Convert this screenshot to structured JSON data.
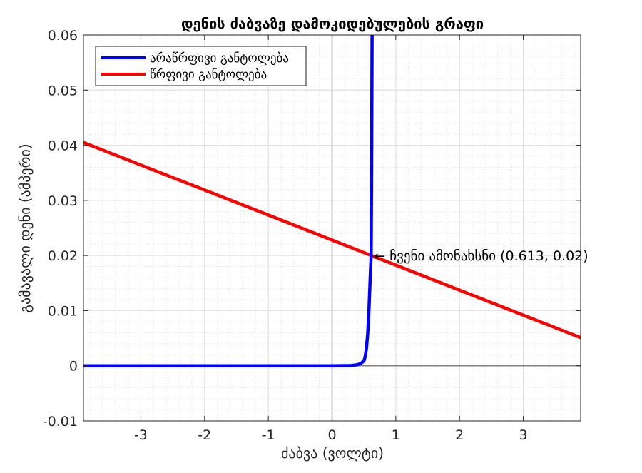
{
  "chart_data": {
    "type": "line",
    "title": "დენის ძაბვაზე დამოკიდებულების გრაფი",
    "xlabel": "ძაბვა (ვოლტი)",
    "ylabel": "გამავალი დენი (ამპერი)",
    "xlim": [
      -3.9,
      3.9
    ],
    "ylim": [
      -0.01,
      0.06
    ],
    "xticks": [
      -3,
      -2,
      -1,
      0,
      1,
      2,
      3
    ],
    "xtick_labels": [
      "-3",
      "-2",
      "-1",
      "0",
      "1",
      "2",
      "3"
    ],
    "yticks": [
      -0.01,
      0,
      0.01,
      0.02,
      0.03,
      0.04,
      0.05,
      0.06
    ],
    "ytick_labels": [
      "-0.01",
      "0",
      "0.01",
      "0.02",
      "0.03",
      "0.04",
      "0.05",
      "0.06"
    ],
    "grid": true,
    "minor_grid": true,
    "legend_position": "top-left",
    "series": [
      {
        "name": "არაწრფივი განტოლება",
        "color": "#0000ff",
        "x": [
          -3.9,
          -2,
          0,
          0.3,
          0.4,
          0.45,
          0.5,
          0.52,
          0.54,
          0.56,
          0.58,
          0.6,
          0.613,
          0.62,
          0.628
        ],
        "y": [
          0,
          0,
          0,
          4e-05,
          0.0002,
          0.0004,
          0.0009,
          0.0017,
          0.0032,
          0.006,
          0.0105,
          0.0165,
          0.02,
          0.035,
          0.06
        ]
      },
      {
        "name": "წრფივი განტოლება",
        "color": "#ff0000",
        "x": [
          -3.9,
          3.9
        ],
        "y": [
          0.0405,
          0.0051
        ]
      }
    ],
    "annotations": [
      {
        "text": "← ჩვენი ამონახსნი (0.613, 0.02)",
        "x": 0.613,
        "y": 0.02
      }
    ]
  }
}
